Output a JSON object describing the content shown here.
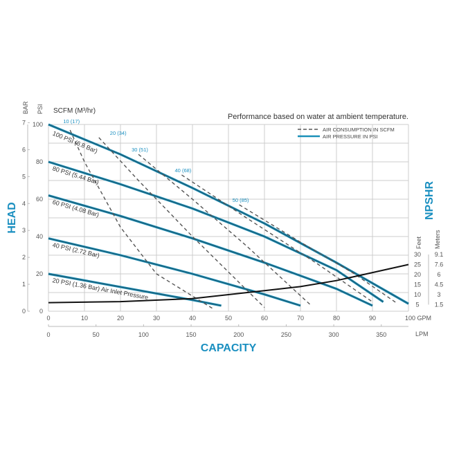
{
  "chart_data": {
    "type": "line",
    "note": "Performance based on water at ambient temperature.",
    "xlabel": "CAPACITY",
    "ylabel": "HEAD",
    "y2label": "NPSHR",
    "x_unit": "GPM",
    "x2_unit": "LPM",
    "y_unit": "PSI",
    "y_alt_unit": "BAR",
    "scfm_label": "SCFM (M³/hr)",
    "npshr_units": [
      "Feet",
      "Meters"
    ],
    "xlim": [
      0,
      100
    ],
    "ylim": [
      0,
      100
    ],
    "x_ticks": [
      0,
      10,
      20,
      30,
      40,
      50,
      60,
      70,
      80,
      90,
      100
    ],
    "x_ticks_text": [
      "0",
      "10",
      "20",
      "30",
      "40",
      "50",
      "60",
      "70",
      "80",
      "90",
      "100 GPM"
    ],
    "lpm_ticks": [
      0,
      50,
      100,
      150,
      200,
      250,
      300,
      350
    ],
    "psi_ticks": [
      0,
      20,
      40,
      60,
      80,
      100
    ],
    "bar_ticks": [
      0,
      1,
      2,
      3,
      4,
      5,
      6,
      7
    ],
    "npshr_feet_ticks": [
      5,
      10,
      15,
      20,
      25,
      30
    ],
    "npshr_meter_ticks": [
      "1.5",
      "3",
      "4.5",
      "6",
      "7.6",
      "9.1"
    ],
    "grid": true,
    "legend": {
      "position": "top-right",
      "items": [
        {
          "label": "AIR CONSUMPTION IN SCFM",
          "style": "dashed"
        },
        {
          "label": "AIR PRESSURE IN PSI",
          "style": "solid"
        }
      ]
    },
    "colors": {
      "pressure": "#1a8fb8",
      "pressure_core": "#1d5f78",
      "air": "#555555",
      "npshr": "#111111",
      "accent": "#1a8fc0"
    },
    "pressure_series": [
      {
        "name": "100 PSI (6.8 Bar)",
        "points": [
          [
            0,
            100
          ],
          [
            20,
            84
          ],
          [
            40,
            66
          ],
          [
            60,
            47
          ],
          [
            80,
            26
          ],
          [
            100,
            4
          ]
        ]
      },
      {
        "name": "80 PSI (5.44 Bar)",
        "points": [
          [
            0,
            80
          ],
          [
            20,
            68
          ],
          [
            40,
            55
          ],
          [
            60,
            40
          ],
          [
            80,
            22
          ],
          [
            93,
            5
          ]
        ]
      },
      {
        "name": "60 PSI (4.08 Bar)",
        "points": [
          [
            0,
            62
          ],
          [
            20,
            51
          ],
          [
            40,
            39
          ],
          [
            60,
            26
          ],
          [
            80,
            12
          ],
          [
            90,
            3
          ]
        ]
      },
      {
        "name": "40 PSI (2.72 Bar)",
        "points": [
          [
            0,
            39
          ],
          [
            20,
            30
          ],
          [
            40,
            20
          ],
          [
            60,
            9
          ],
          [
            70,
            3
          ]
        ]
      },
      {
        "name": "20 PSI (1.36 Bar) Air Inlet Pressure",
        "points": [
          [
            0,
            20
          ],
          [
            20,
            13
          ],
          [
            40,
            6
          ],
          [
            48,
            3
          ]
        ]
      }
    ],
    "air_series": [
      {
        "name": "10 (17)",
        "points": [
          [
            6,
            97
          ],
          [
            10,
            80
          ],
          [
            20,
            45
          ],
          [
            30,
            20
          ],
          [
            46,
            1
          ]
        ]
      },
      {
        "name": "20 (34)",
        "points": [
          [
            14,
            93
          ],
          [
            25,
            70
          ],
          [
            40,
            40
          ],
          [
            60,
            2
          ]
        ]
      },
      {
        "name": "30 (51)",
        "points": [
          [
            25,
            84
          ],
          [
            40,
            60
          ],
          [
            55,
            35
          ],
          [
            73,
            3
          ]
        ]
      },
      {
        "name": "40 (68)",
        "points": [
          [
            37,
            73
          ],
          [
            55,
            50
          ],
          [
            75,
            25
          ],
          [
            90,
            5
          ]
        ]
      },
      {
        "name": "50 (85)",
        "points": [
          [
            53,
            57
          ],
          [
            70,
            37
          ],
          [
            85,
            20
          ],
          [
            97,
            4
          ]
        ]
      }
    ],
    "npshr_series": {
      "name": "NPSHR",
      "unit": "feet",
      "points": [
        [
          0,
          6
        ],
        [
          20,
          6.5
        ],
        [
          40,
          8
        ],
        [
          50,
          10
        ],
        [
          60,
          12
        ],
        [
          70,
          14
        ],
        [
          80,
          17
        ],
        [
          90,
          21
        ],
        [
          100,
          25
        ]
      ]
    }
  }
}
